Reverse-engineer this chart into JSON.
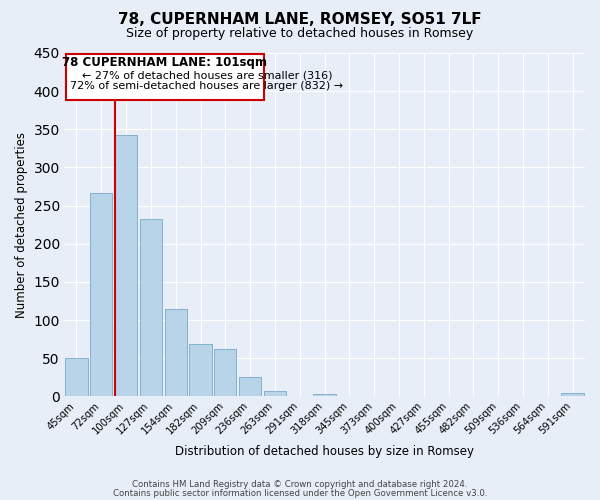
{
  "title": "78, CUPERNHAM LANE, ROMSEY, SO51 7LF",
  "subtitle": "Size of property relative to detached houses in Romsey",
  "xlabel": "Distribution of detached houses by size in Romsey",
  "ylabel": "Number of detached properties",
  "bar_labels": [
    "45sqm",
    "72sqm",
    "100sqm",
    "127sqm",
    "154sqm",
    "182sqm",
    "209sqm",
    "236sqm",
    "263sqm",
    "291sqm",
    "318sqm",
    "345sqm",
    "373sqm",
    "400sqm",
    "427sqm",
    "455sqm",
    "482sqm",
    "509sqm",
    "536sqm",
    "564sqm",
    "591sqm"
  ],
  "bar_values": [
    50,
    267,
    342,
    232,
    114,
    68,
    62,
    25,
    7,
    0,
    3,
    0,
    0,
    0,
    0,
    0,
    0,
    0,
    0,
    0,
    5
  ],
  "bar_color_normal": "#b8d4e8",
  "bar_edge_color": "#7aaac8",
  "highlight_color": "#cc0000",
  "ylim": [
    0,
    450
  ],
  "yticks": [
    0,
    50,
    100,
    150,
    200,
    250,
    300,
    350,
    400,
    450
  ],
  "annotation_title": "78 CUPERNHAM LANE: 101sqm",
  "annotation_line1": "← 27% of detached houses are smaller (316)",
  "annotation_line2": "72% of semi-detached houses are larger (832) →",
  "footer_line1": "Contains HM Land Registry data © Crown copyright and database right 2024.",
  "footer_line2": "Contains public sector information licensed under the Open Government Licence v3.0.",
  "background_color": "#e8eef8",
  "grid_color": "#ffffff",
  "annotation_box_color": "#ffffff",
  "annotation_box_edge": "#cc0000",
  "highlight_bar_index": 2,
  "n_bars": 21
}
